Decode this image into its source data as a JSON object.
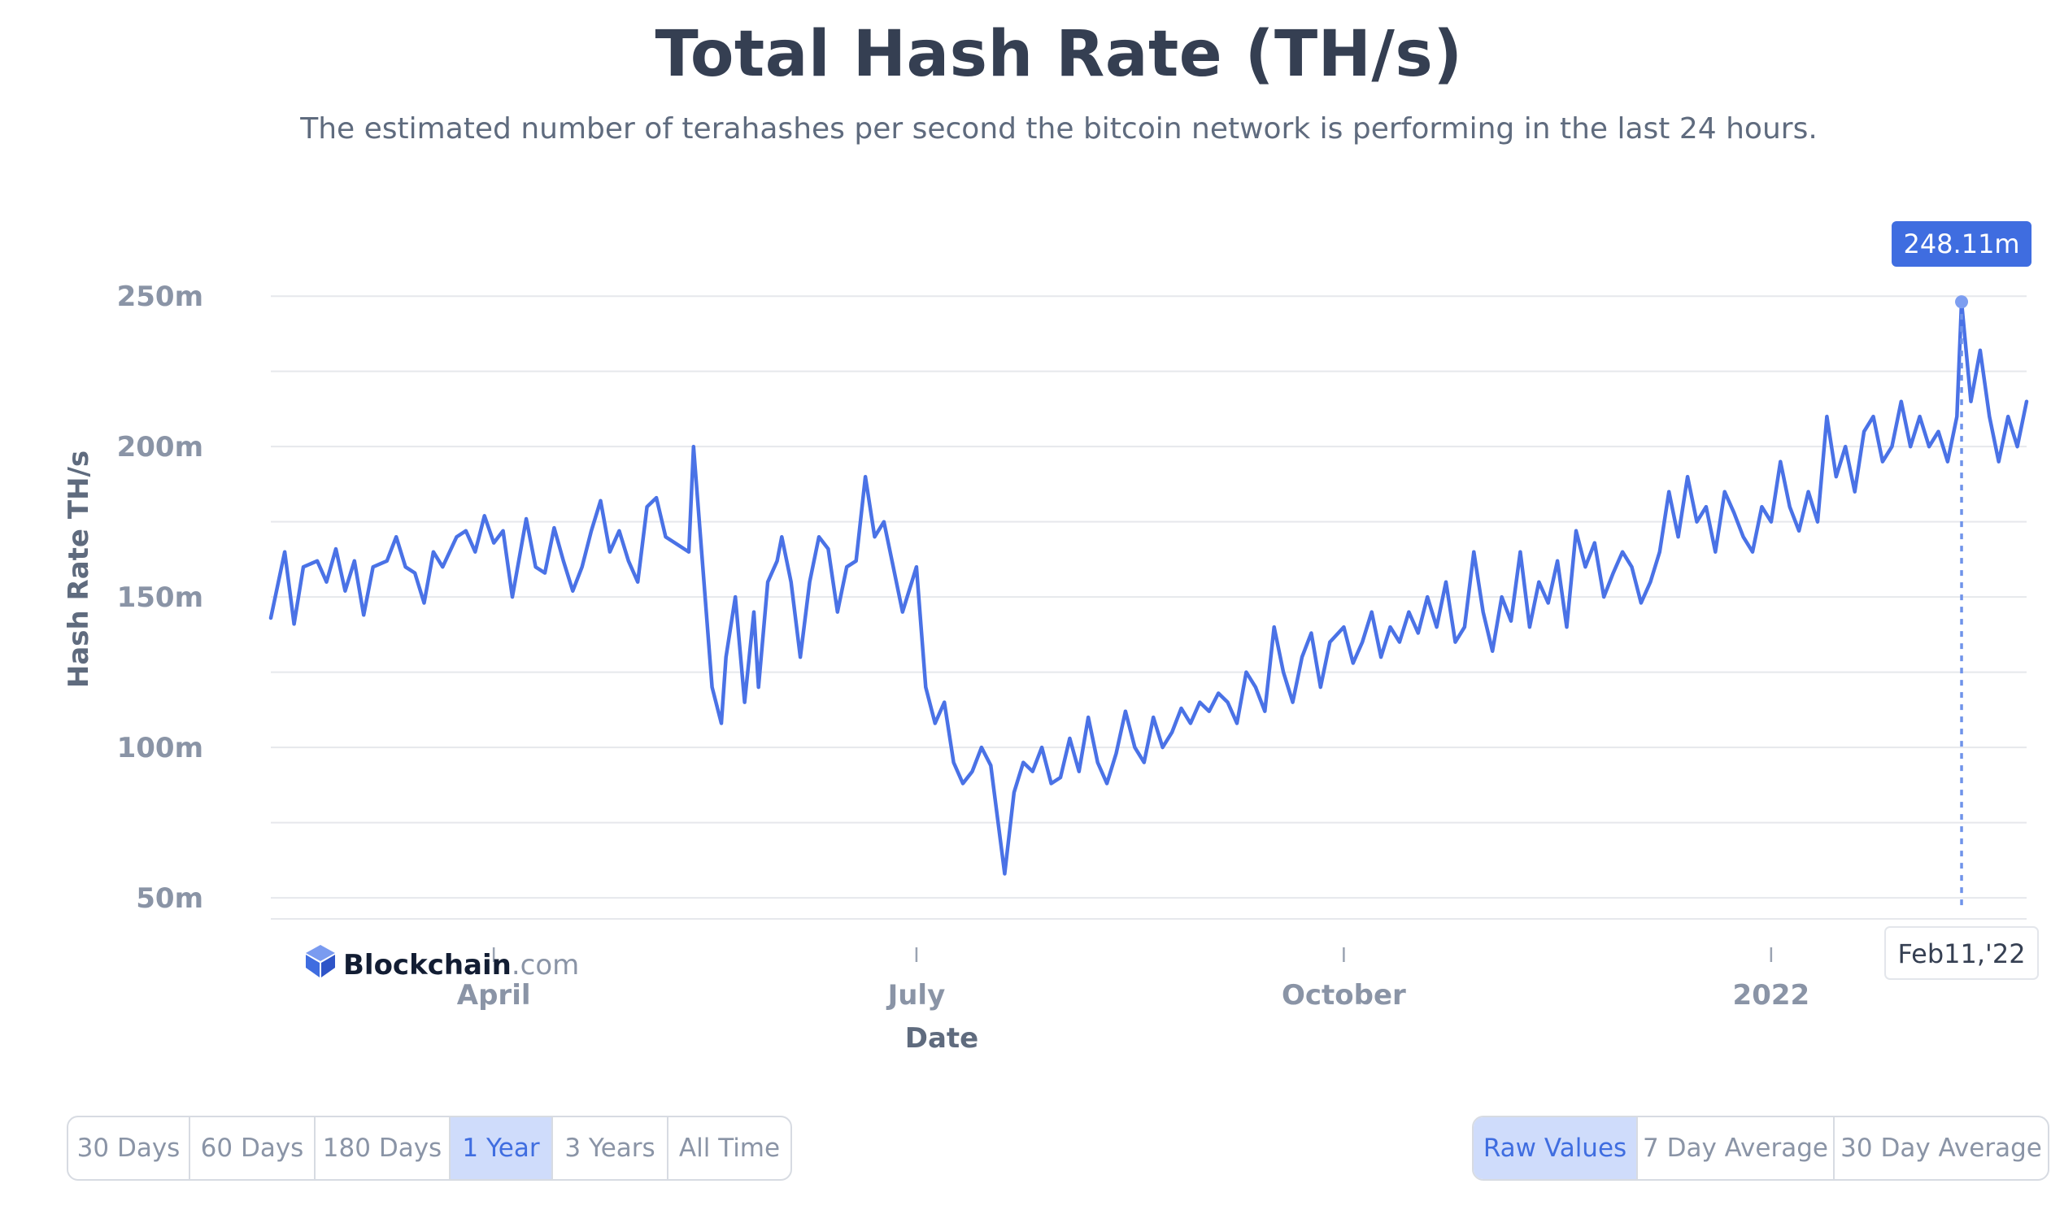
{
  "title": "Total Hash Rate (TH/s)",
  "subtitle": "The estimated number of terahashes per second the bitcoin network is performing in the last 24 hours.",
  "logo": {
    "brand": "Blockchain",
    "suffix": ".com"
  },
  "tooltip": {
    "value": "248.11m",
    "date": "Feb11,'22"
  },
  "range_buttons": [
    {
      "label": "30 Days",
      "active": false
    },
    {
      "label": "60 Days",
      "active": false
    },
    {
      "label": "180 Days",
      "active": false
    },
    {
      "label": "1 Year",
      "active": true
    },
    {
      "label": "3 Years",
      "active": false
    },
    {
      "label": "All Time",
      "active": false
    }
  ],
  "mode_buttons": [
    {
      "label": "Raw Values",
      "active": true
    },
    {
      "label": "7 Day Average",
      "active": false
    },
    {
      "label": "30 Day Average",
      "active": false
    }
  ],
  "colors": {
    "line": "#4a72e6",
    "accent": "#3f6de0",
    "grid": "#e6e8ec",
    "axis_text": "#8a94a6"
  },
  "chart_data": {
    "type": "line",
    "xlabel": "Date",
    "ylabel": "Hash Rate TH/s",
    "x_range": [
      "2021-02-12",
      "2022-02-25"
    ],
    "x_ticks": [
      {
        "label": "April",
        "date": "2021-04-01"
      },
      {
        "label": "July",
        "date": "2021-07-01"
      },
      {
        "label": "October",
        "date": "2021-10-01"
      },
      {
        "label": "2022",
        "date": "2022-01-01"
      }
    ],
    "ylim": [
      43,
      266
    ],
    "y_ticks": [
      {
        "label": "50m",
        "value": 50
      },
      {
        "label": "100m",
        "value": 100
      },
      {
        "label": "150m",
        "value": 150
      },
      {
        "label": "200m",
        "value": 200
      },
      {
        "label": "250m",
        "value": 250
      }
    ],
    "grid": true,
    "highlight": {
      "date": "2022-02-11",
      "value": 248.11
    },
    "series": [
      {
        "points": [
          [
            "2021-02-12",
            143
          ],
          [
            "2021-02-15",
            165
          ],
          [
            "2021-02-17",
            141
          ],
          [
            "2021-02-19",
            160
          ],
          [
            "2021-02-22",
            162
          ],
          [
            "2021-02-24",
            155
          ],
          [
            "2021-02-26",
            166
          ],
          [
            "2021-02-28",
            152
          ],
          [
            "2021-03-02",
            162
          ],
          [
            "2021-03-04",
            144
          ],
          [
            "2021-03-06",
            160
          ],
          [
            "2021-03-09",
            162
          ],
          [
            "2021-03-11",
            170
          ],
          [
            "2021-03-13",
            160
          ],
          [
            "2021-03-15",
            158
          ],
          [
            "2021-03-17",
            148
          ],
          [
            "2021-03-19",
            165
          ],
          [
            "2021-03-21",
            160
          ],
          [
            "2021-03-24",
            170
          ],
          [
            "2021-03-26",
            172
          ],
          [
            "2021-03-28",
            165
          ],
          [
            "2021-03-30",
            177
          ],
          [
            "2021-04-01",
            168
          ],
          [
            "2021-04-03",
            172
          ],
          [
            "2021-04-05",
            150
          ],
          [
            "2021-04-08",
            176
          ],
          [
            "2021-04-10",
            160
          ],
          [
            "2021-04-12",
            158
          ],
          [
            "2021-04-14",
            173
          ],
          [
            "2021-04-16",
            162
          ],
          [
            "2021-04-18",
            152
          ],
          [
            "2021-04-20",
            160
          ],
          [
            "2021-04-22",
            172
          ],
          [
            "2021-04-24",
            182
          ],
          [
            "2021-04-26",
            165
          ],
          [
            "2021-04-28",
            172
          ],
          [
            "2021-04-30",
            162
          ],
          [
            "2021-05-02",
            155
          ],
          [
            "2021-05-04",
            180
          ],
          [
            "2021-05-06",
            183
          ],
          [
            "2021-05-08",
            170
          ],
          [
            "2021-05-10",
            168
          ],
          [
            "2021-05-13",
            165
          ],
          [
            "2021-05-14",
            200
          ],
          [
            "2021-05-16",
            160
          ],
          [
            "2021-05-18",
            120
          ],
          [
            "2021-05-20",
            108
          ],
          [
            "2021-05-21",
            130
          ],
          [
            "2021-05-23",
            150
          ],
          [
            "2021-05-25",
            115
          ],
          [
            "2021-05-27",
            145
          ],
          [
            "2021-05-28",
            120
          ],
          [
            "2021-05-30",
            155
          ],
          [
            "2021-06-01",
            162
          ],
          [
            "2021-06-02",
            170
          ],
          [
            "2021-06-04",
            155
          ],
          [
            "2021-06-06",
            130
          ],
          [
            "2021-06-08",
            155
          ],
          [
            "2021-06-10",
            170
          ],
          [
            "2021-06-12",
            166
          ],
          [
            "2021-06-14",
            145
          ],
          [
            "2021-06-16",
            160
          ],
          [
            "2021-06-18",
            162
          ],
          [
            "2021-06-20",
            190
          ],
          [
            "2021-06-22",
            170
          ],
          [
            "2021-06-24",
            175
          ],
          [
            "2021-06-26",
            160
          ],
          [
            "2021-06-28",
            145
          ],
          [
            "2021-07-01",
            160
          ],
          [
            "2021-07-03",
            120
          ],
          [
            "2021-07-05",
            108
          ],
          [
            "2021-07-07",
            115
          ],
          [
            "2021-07-09",
            95
          ],
          [
            "2021-07-11",
            88
          ],
          [
            "2021-07-13",
            92
          ],
          [
            "2021-07-15",
            100
          ],
          [
            "2021-07-17",
            94
          ],
          [
            "2021-07-20",
            58
          ],
          [
            "2021-07-22",
            85
          ],
          [
            "2021-07-24",
            95
          ],
          [
            "2021-07-26",
            92
          ],
          [
            "2021-07-28",
            100
          ],
          [
            "2021-07-30",
            88
          ],
          [
            "2021-08-01",
            90
          ],
          [
            "2021-08-03",
            103
          ],
          [
            "2021-08-05",
            92
          ],
          [
            "2021-08-07",
            110
          ],
          [
            "2021-08-09",
            95
          ],
          [
            "2021-08-11",
            88
          ],
          [
            "2021-08-13",
            98
          ],
          [
            "2021-08-15",
            112
          ],
          [
            "2021-08-17",
            100
          ],
          [
            "2021-08-19",
            95
          ],
          [
            "2021-08-21",
            110
          ],
          [
            "2021-08-23",
            100
          ],
          [
            "2021-08-25",
            105
          ],
          [
            "2021-08-27",
            113
          ],
          [
            "2021-08-29",
            108
          ],
          [
            "2021-08-31",
            115
          ],
          [
            "2021-09-02",
            112
          ],
          [
            "2021-09-04",
            118
          ],
          [
            "2021-09-06",
            115
          ],
          [
            "2021-09-08",
            108
          ],
          [
            "2021-09-10",
            125
          ],
          [
            "2021-09-12",
            120
          ],
          [
            "2021-09-14",
            112
          ],
          [
            "2021-09-16",
            140
          ],
          [
            "2021-09-18",
            125
          ],
          [
            "2021-09-20",
            115
          ],
          [
            "2021-09-22",
            130
          ],
          [
            "2021-09-24",
            138
          ],
          [
            "2021-09-26",
            120
          ],
          [
            "2021-09-28",
            135
          ],
          [
            "2021-10-01",
            140
          ],
          [
            "2021-10-03",
            128
          ],
          [
            "2021-10-05",
            135
          ],
          [
            "2021-10-07",
            145
          ],
          [
            "2021-10-09",
            130
          ],
          [
            "2021-10-11",
            140
          ],
          [
            "2021-10-13",
            135
          ],
          [
            "2021-10-15",
            145
          ],
          [
            "2021-10-17",
            138
          ],
          [
            "2021-10-19",
            150
          ],
          [
            "2021-10-21",
            140
          ],
          [
            "2021-10-23",
            155
          ],
          [
            "2021-10-25",
            135
          ],
          [
            "2021-10-27",
            140
          ],
          [
            "2021-10-29",
            165
          ],
          [
            "2021-10-31",
            145
          ],
          [
            "2021-11-02",
            132
          ],
          [
            "2021-11-04",
            150
          ],
          [
            "2021-11-06",
            142
          ],
          [
            "2021-11-08",
            165
          ],
          [
            "2021-11-10",
            140
          ],
          [
            "2021-11-12",
            155
          ],
          [
            "2021-11-14",
            148
          ],
          [
            "2021-11-16",
            162
          ],
          [
            "2021-11-18",
            140
          ],
          [
            "2021-11-20",
            172
          ],
          [
            "2021-11-22",
            160
          ],
          [
            "2021-11-24",
            168
          ],
          [
            "2021-11-26",
            150
          ],
          [
            "2021-11-28",
            158
          ],
          [
            "2021-11-30",
            165
          ],
          [
            "2021-12-02",
            160
          ],
          [
            "2021-12-04",
            148
          ],
          [
            "2021-12-06",
            155
          ],
          [
            "2021-12-08",
            165
          ],
          [
            "2021-12-10",
            185
          ],
          [
            "2021-12-12",
            170
          ],
          [
            "2021-12-14",
            190
          ],
          [
            "2021-12-16",
            175
          ],
          [
            "2021-12-18",
            180
          ],
          [
            "2021-12-20",
            165
          ],
          [
            "2021-12-22",
            185
          ],
          [
            "2021-12-24",
            178
          ],
          [
            "2021-12-26",
            170
          ],
          [
            "2021-12-28",
            165
          ],
          [
            "2021-12-30",
            180
          ],
          [
            "2022-01-01",
            175
          ],
          [
            "2022-01-03",
            195
          ],
          [
            "2022-01-05",
            180
          ],
          [
            "2022-01-07",
            172
          ],
          [
            "2022-01-09",
            185
          ],
          [
            "2022-01-11",
            175
          ],
          [
            "2022-01-13",
            210
          ],
          [
            "2022-01-15",
            190
          ],
          [
            "2022-01-17",
            200
          ],
          [
            "2022-01-19",
            185
          ],
          [
            "2022-01-21",
            205
          ],
          [
            "2022-01-23",
            210
          ],
          [
            "2022-01-25",
            195
          ],
          [
            "2022-01-27",
            200
          ],
          [
            "2022-01-29",
            215
          ],
          [
            "2022-01-31",
            200
          ],
          [
            "2022-02-02",
            210
          ],
          [
            "2022-02-04",
            200
          ],
          [
            "2022-02-06",
            205
          ],
          [
            "2022-02-08",
            195
          ],
          [
            "2022-02-10",
            210
          ],
          [
            "2022-02-11",
            248.11
          ],
          [
            "2022-02-13",
            215
          ],
          [
            "2022-02-15",
            232
          ],
          [
            "2022-02-17",
            210
          ],
          [
            "2022-02-19",
            195
          ],
          [
            "2022-02-21",
            210
          ],
          [
            "2022-02-23",
            200
          ],
          [
            "2022-02-25",
            215
          ]
        ]
      }
    ]
  }
}
